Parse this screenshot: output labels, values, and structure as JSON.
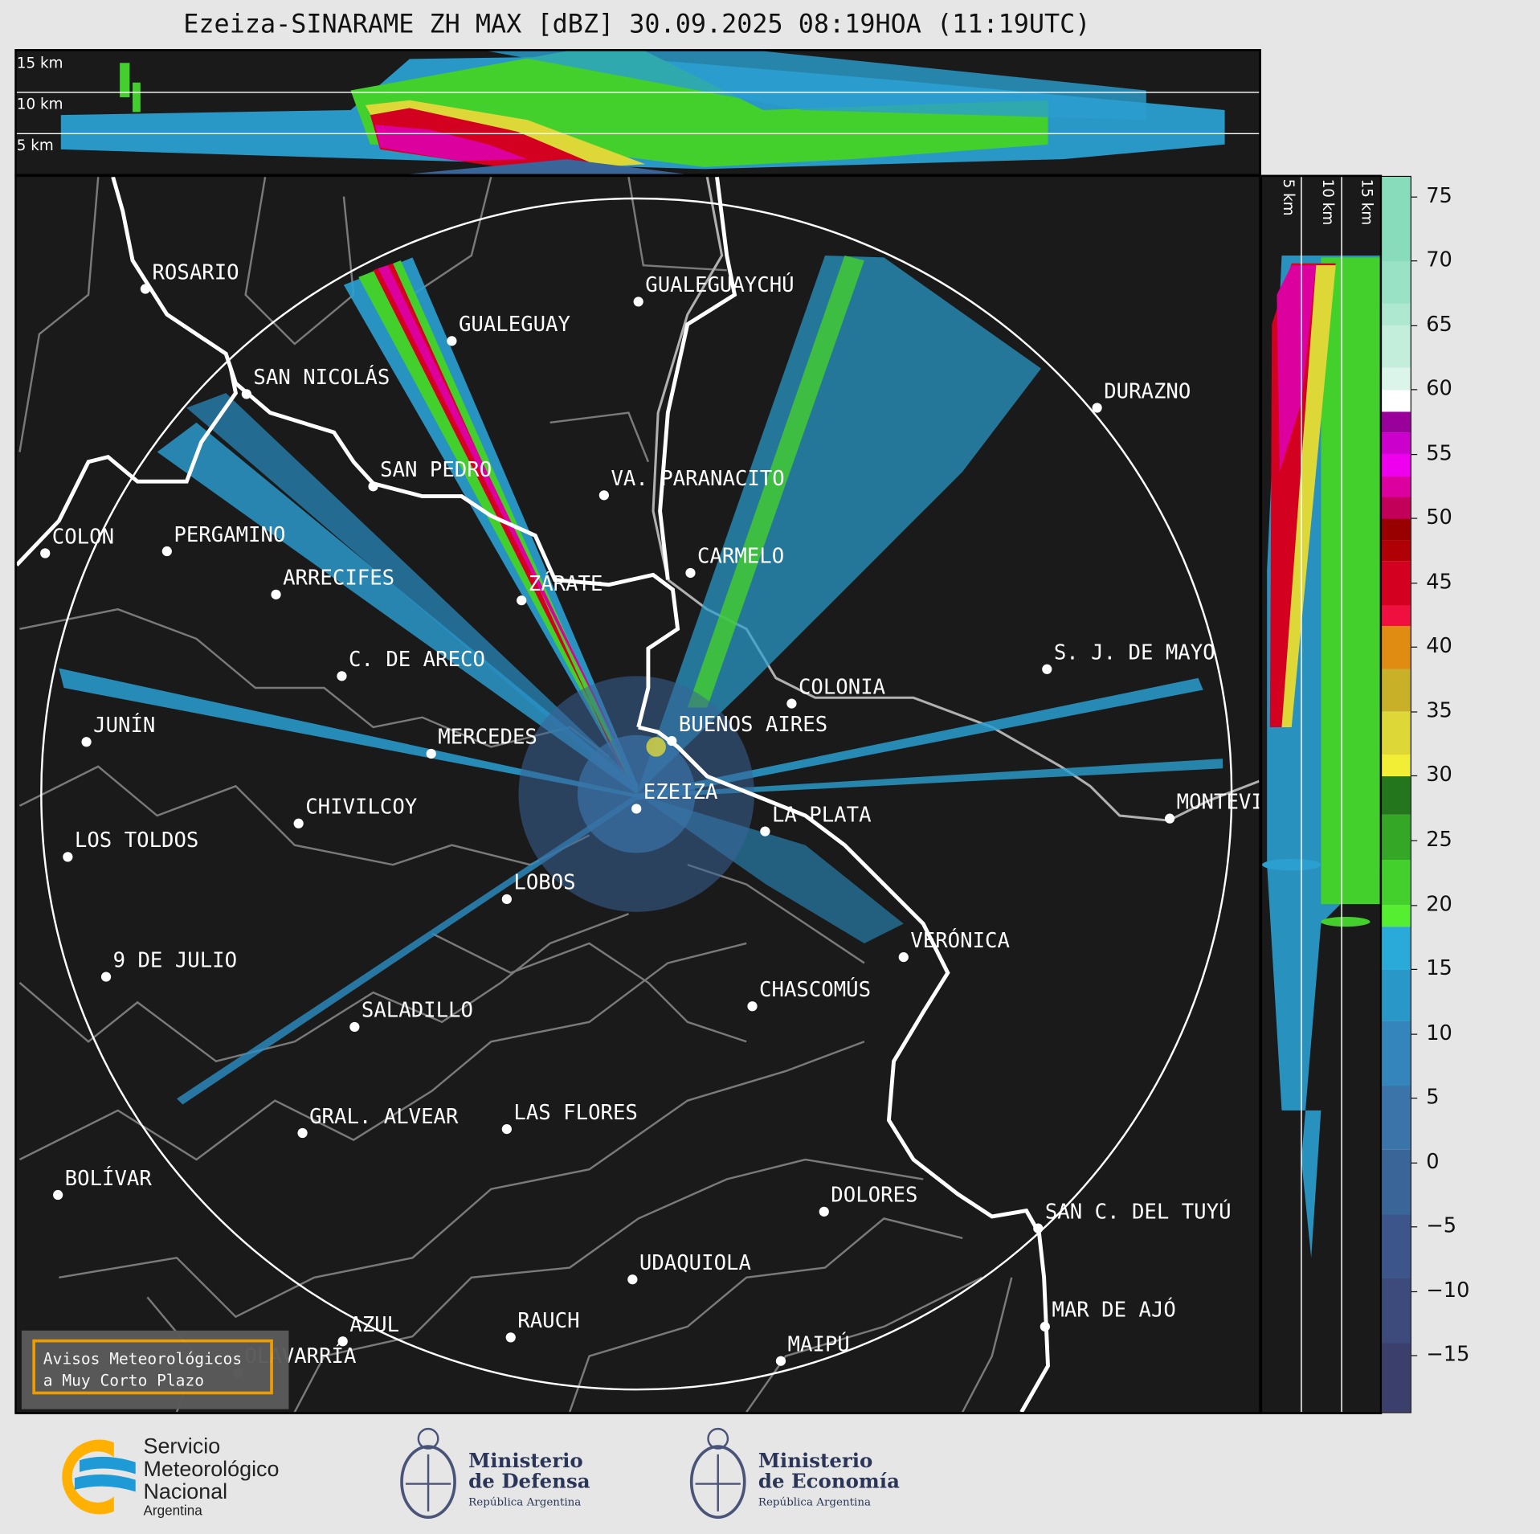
{
  "title": "Ezeiza-SINARAME ZH MAX [dBZ] 30.09.2025 08:19HOA (11:19UTC)",
  "top_panel": {
    "height_labels": [
      "15 km",
      "10 km",
      "5 km"
    ]
  },
  "side_panel": {
    "height_labels": [
      "5 km",
      "10 km",
      "15 km"
    ]
  },
  "cities": [
    "ROSARIO",
    "GUALEGUAYCHÚ",
    "GUALEGUAY",
    "SAN NICOLÁS",
    "DURAZNO",
    "SAN PEDRO",
    "VA. PARANACITO",
    "COLON",
    "PERGAMINO",
    "CARMELO",
    "ARRECIFES",
    "ZÁRATE",
    "C. DE ARECO",
    "S. J. DE MAYO",
    "COLONIA",
    "BUENOS AIRES",
    "JUNÍN",
    "MERCEDES",
    "MONTEVIDEO",
    "EZEIZA",
    "CHIVILCOY",
    "LA PLATA",
    "LOS TOLDOS",
    "LOBOS",
    "VERÓNICA",
    "9 DE JULIO",
    "CHASCOMÚS",
    "SALADILLO",
    "GRAL. ALVEAR",
    "LAS FLORES",
    "BOLÍVAR",
    "DOLORES",
    "SAN C. DEL TUYÚ",
    "UDAQUIOLA",
    "MAR DE AJÓ",
    "AZUL",
    "RAUCH",
    "MAIPÚ",
    "OLAVARRÍA"
  ],
  "colorbar": {
    "unit": "dBZ",
    "range": [
      -19.4,
      76.5
    ],
    "ticks": [
      "75",
      "70",
      "65",
      "60",
      "55",
      "50",
      "45",
      "40",
      "35",
      "30",
      "25",
      "20",
      "15",
      "10",
      "5",
      "0",
      "−5",
      "−10",
      "−15"
    ],
    "tick_values": [
      75,
      70,
      65,
      60,
      55,
      50,
      45,
      40,
      35,
      30,
      25,
      20,
      15,
      10,
      5,
      0,
      -5,
      -10,
      -15
    ],
    "bins": [
      {
        "from": -19.4,
        "to": -14,
        "color": "#3b3f6c"
      },
      {
        "from": -14,
        "to": -9,
        "color": "#3c4a7c"
      },
      {
        "from": -9,
        "to": -4,
        "color": "#3c568c"
      },
      {
        "from": -4,
        "to": 1,
        "color": "#3a6598"
      },
      {
        "from": 1,
        "to": 6,
        "color": "#3a74a8"
      },
      {
        "from": 6,
        "to": 11,
        "color": "#3585bd"
      },
      {
        "from": 11,
        "to": 15,
        "color": "#2a97c9"
      },
      {
        "from": 15,
        "to": 18.3,
        "color": "#2aaad8"
      },
      {
        "from": 18.3,
        "to": 20,
        "color": "#55ee30"
      },
      {
        "from": 20,
        "to": 23.5,
        "color": "#44d02c"
      },
      {
        "from": 23.5,
        "to": 27,
        "color": "#34a826"
      },
      {
        "from": 27,
        "to": 30,
        "color": "#23761c"
      },
      {
        "from": 30,
        "to": 31.7,
        "color": "#f2ee36"
      },
      {
        "from": 31.7,
        "to": 35,
        "color": "#ddd838"
      },
      {
        "from": 35,
        "to": 38.3,
        "color": "#c8b028"
      },
      {
        "from": 38.3,
        "to": 41.7,
        "color": "#e08b12"
      },
      {
        "from": 41.7,
        "to": 43.3,
        "color": "#f01040"
      },
      {
        "from": 43.3,
        "to": 46.7,
        "color": "#d40020"
      },
      {
        "from": 46.7,
        "to": 48.3,
        "color": "#b00006"
      },
      {
        "from": 48.3,
        "to": 50,
        "color": "#980000"
      },
      {
        "from": 50,
        "to": 51.7,
        "color": "#c2005a"
      },
      {
        "from": 51.7,
        "to": 53.3,
        "color": "#dc009e"
      },
      {
        "from": 53.3,
        "to": 55,
        "color": "#ee00ee"
      },
      {
        "from": 55,
        "to": 56.7,
        "color": "#cc00cc"
      },
      {
        "from": 56.7,
        "to": 58.3,
        "color": "#9a009a"
      },
      {
        "from": 58.3,
        "to": 60,
        "color": "#ffffff"
      },
      {
        "from": 60,
        "to": 61.7,
        "color": "#dcf5ea"
      },
      {
        "from": 61.7,
        "to": 65,
        "color": "#c2eedb"
      },
      {
        "from": 65,
        "to": 66.7,
        "color": "#aee8d0"
      },
      {
        "from": 66.7,
        "to": 70,
        "color": "#9ae2c6"
      },
      {
        "from": 70,
        "to": 76.5,
        "color": "#88dcbb"
      }
    ]
  },
  "notice_box": {
    "line1": "Avisos Meteorológicos",
    "line2": "a Muy Corto Plazo",
    "border_color": "#f5a200"
  },
  "logos": {
    "smn": [
      "Servicio",
      "Meteorológico",
      "Nacional",
      "Argentina"
    ],
    "defensa": [
      "Ministerio",
      "de Defensa",
      "República Argentina"
    ],
    "economia": [
      "Ministerio",
      "de Economía",
      "República Argentina"
    ]
  },
  "colors": {
    "background": "#e6e6e6",
    "map": "#1a1a1a",
    "coastline": "#ffffff",
    "borders": "#7a7a7a",
    "smn_orange": "#ffb000",
    "smn_blue": "#1e9ad6"
  }
}
